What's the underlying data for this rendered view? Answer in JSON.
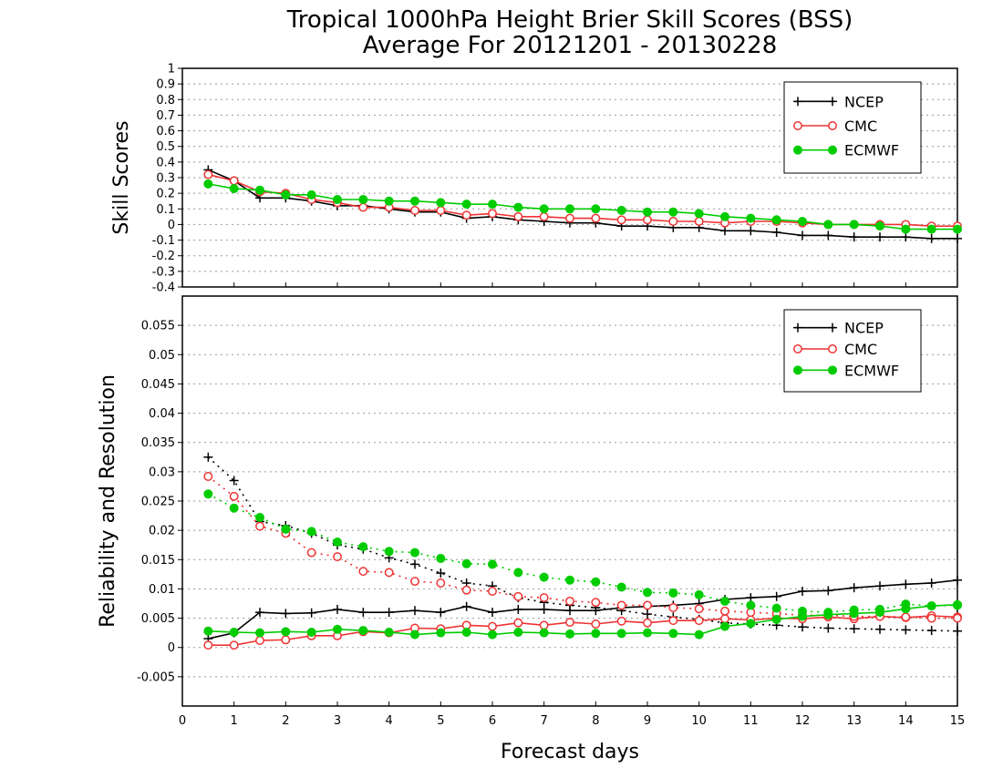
{
  "title_line1": "Tropical 1000hPa Height Brier Skill Scores (BSS)",
  "title_line2": "Average For 20121201 - 20130228",
  "xlabel": "Forecast days",
  "colors": {
    "NCEP": "#000000",
    "CMC": "#ee3333",
    "ECMWF": "#00cc00",
    "grid": "#999999"
  },
  "chart_data": [
    {
      "type": "line",
      "ylabel": "Skill Scores",
      "ylim": [
        -0.4,
        1
      ],
      "yticks": [
        -0.4,
        -0.3,
        -0.2,
        -0.1,
        0,
        0.1,
        0.2,
        0.3,
        0.4,
        0.5,
        0.6,
        0.7,
        0.8,
        0.9,
        1
      ],
      "xlim": [
        0,
        15
      ],
      "xticks": [
        0,
        1,
        2,
        3,
        4,
        5,
        6,
        7,
        8,
        9,
        10,
        11,
        12,
        13,
        14,
        15
      ],
      "grid": true,
      "legend": "top-right",
      "x": [
        0.5,
        1,
        1.5,
        2,
        2.5,
        3,
        3.5,
        4,
        4.5,
        5,
        5.5,
        6,
        6.5,
        7,
        7.5,
        8,
        8.5,
        9,
        9.5,
        10,
        10.5,
        11,
        11.5,
        12,
        12.5,
        13,
        13.5,
        14,
        14.5,
        15
      ],
      "series": [
        {
          "name": "NCEP",
          "style": "plus",
          "values": [
            0.35,
            0.28,
            0.17,
            0.17,
            0.15,
            0.12,
            0.12,
            0.1,
            0.08,
            0.08,
            0.04,
            0.05,
            0.03,
            0.02,
            0.01,
            0.01,
            -0.01,
            -0.01,
            -0.02,
            -0.02,
            -0.04,
            -0.04,
            -0.05,
            -0.07,
            -0.07,
            -0.08,
            -0.08,
            -0.08,
            -0.09,
            -0.09
          ]
        },
        {
          "name": "CMC",
          "style": "open-circle",
          "values": [
            0.32,
            0.28,
            0.21,
            0.2,
            0.16,
            0.14,
            0.11,
            0.11,
            0.09,
            0.09,
            0.06,
            0.07,
            0.05,
            0.05,
            0.04,
            0.04,
            0.03,
            0.03,
            0.02,
            0.02,
            0.01,
            0.02,
            0.02,
            0.01,
            0.0,
            0.0,
            0.0,
            0.0,
            -0.01,
            -0.01
          ]
        },
        {
          "name": "ECMWF",
          "style": "filled-circle",
          "values": [
            0.26,
            0.23,
            0.22,
            0.19,
            0.19,
            0.16,
            0.16,
            0.15,
            0.15,
            0.14,
            0.13,
            0.13,
            0.11,
            0.1,
            0.1,
            0.1,
            0.09,
            0.08,
            0.08,
            0.07,
            0.05,
            0.04,
            0.03,
            0.02,
            0.0,
            0.0,
            -0.01,
            -0.03,
            -0.03,
            -0.03
          ]
        }
      ]
    },
    {
      "type": "line",
      "ylabel": "Reliability and Resolution",
      "ylim": [
        -0.01,
        0.06
      ],
      "yticks": [
        -0.005,
        0,
        0.005,
        0.01,
        0.015,
        0.02,
        0.025,
        0.03,
        0.035,
        0.04,
        0.045,
        0.05,
        0.055
      ],
      "ytick_labels": [
        "-0.005",
        "0",
        "0.005",
        "0.01",
        "0.015",
        "0.02",
        "0.025",
        "0.03",
        "0.035",
        "0.04",
        "0.045",
        "0.05",
        "0.055"
      ],
      "xlim": [
        0,
        15
      ],
      "xticks": [
        0,
        1,
        2,
        3,
        4,
        5,
        6,
        7,
        8,
        9,
        10,
        11,
        12,
        13,
        14,
        15
      ],
      "grid": true,
      "legend": "top-right",
      "x": [
        0.5,
        1,
        1.5,
        2,
        2.5,
        3,
        3.5,
        4,
        4.5,
        5,
        5.5,
        6,
        6.5,
        7,
        7.5,
        8,
        8.5,
        9,
        9.5,
        10,
        10.5,
        11,
        11.5,
        12,
        12.5,
        13,
        13.5,
        14,
        14.5,
        15
      ],
      "series": [
        {
          "name": "NCEP",
          "style": "plus",
          "dash": "solid",
          "values": [
            0.0015,
            0.0025,
            0.006,
            0.0058,
            0.0059,
            0.0065,
            0.006,
            0.006,
            0.0063,
            0.006,
            0.007,
            0.006,
            0.0065,
            0.0065,
            0.0063,
            0.0063,
            0.0068,
            0.007,
            0.0072,
            0.0075,
            0.0082,
            0.0085,
            0.0087,
            0.0096,
            0.0097,
            0.0102,
            0.0105,
            0.0108,
            0.011,
            0.0115
          ]
        },
        {
          "name": "NCEP",
          "style": "plus",
          "dash": "dotted",
          "values": [
            0.0325,
            0.0285,
            0.0215,
            0.0208,
            0.0195,
            0.0175,
            0.0168,
            0.0153,
            0.0142,
            0.0127,
            0.011,
            0.0105,
            0.0085,
            0.0077,
            0.0072,
            0.0068,
            0.0063,
            0.0057,
            0.0052,
            0.0048,
            0.0042,
            0.004,
            0.0038,
            0.0035,
            0.0033,
            0.0032,
            0.0031,
            0.003,
            0.0029,
            0.0028
          ]
        },
        {
          "name": "CMC",
          "style": "open-circle",
          "dash": "solid",
          "values": [
            0.0004,
            0.0004,
            0.0012,
            0.0013,
            0.002,
            0.002,
            0.0027,
            0.0025,
            0.0033,
            0.0032,
            0.0038,
            0.0036,
            0.0042,
            0.0038,
            0.0043,
            0.004,
            0.0045,
            0.0042,
            0.0046,
            0.0046,
            0.0049,
            0.0047,
            0.005,
            0.0049,
            0.0052,
            0.0049,
            0.0053,
            0.0051,
            0.0054,
            0.0052
          ]
        },
        {
          "name": "CMC",
          "style": "open-circle",
          "dash": "dotted",
          "values": [
            0.0292,
            0.0258,
            0.0207,
            0.0195,
            0.0162,
            0.0155,
            0.013,
            0.0128,
            0.0113,
            0.011,
            0.0098,
            0.0096,
            0.0087,
            0.0085,
            0.0079,
            0.0077,
            0.0072,
            0.0072,
            0.0068,
            0.0066,
            0.0062,
            0.006,
            0.0058,
            0.0055,
            0.0055,
            0.0053,
            0.0053,
            0.0052,
            0.005,
            0.005
          ]
        },
        {
          "name": "ECMWF",
          "style": "filled-circle",
          "dash": "solid",
          "values": [
            0.0028,
            0.0026,
            0.0025,
            0.0027,
            0.0026,
            0.0031,
            0.0029,
            0.0026,
            0.0022,
            0.0025,
            0.0026,
            0.0022,
            0.0026,
            0.0025,
            0.0023,
            0.0024,
            0.0024,
            0.0025,
            0.0024,
            0.0022,
            0.0036,
            0.0041,
            0.0048,
            0.0053,
            0.0056,
            0.0058,
            0.006,
            0.0066,
            0.0071,
            0.0073
          ]
        },
        {
          "name": "ECMWF",
          "style": "filled-circle",
          "dash": "dotted",
          "values": [
            0.0262,
            0.0238,
            0.0222,
            0.0202,
            0.0198,
            0.018,
            0.0172,
            0.0164,
            0.0162,
            0.0152,
            0.0143,
            0.0142,
            0.0128,
            0.012,
            0.0115,
            0.0112,
            0.0103,
            0.0094,
            0.0093,
            0.009,
            0.0079,
            0.0072,
            0.0067,
            0.0062,
            0.006,
            0.0064,
            0.0065,
            0.0074,
            0.0071,
            0.0072
          ]
        }
      ]
    }
  ]
}
